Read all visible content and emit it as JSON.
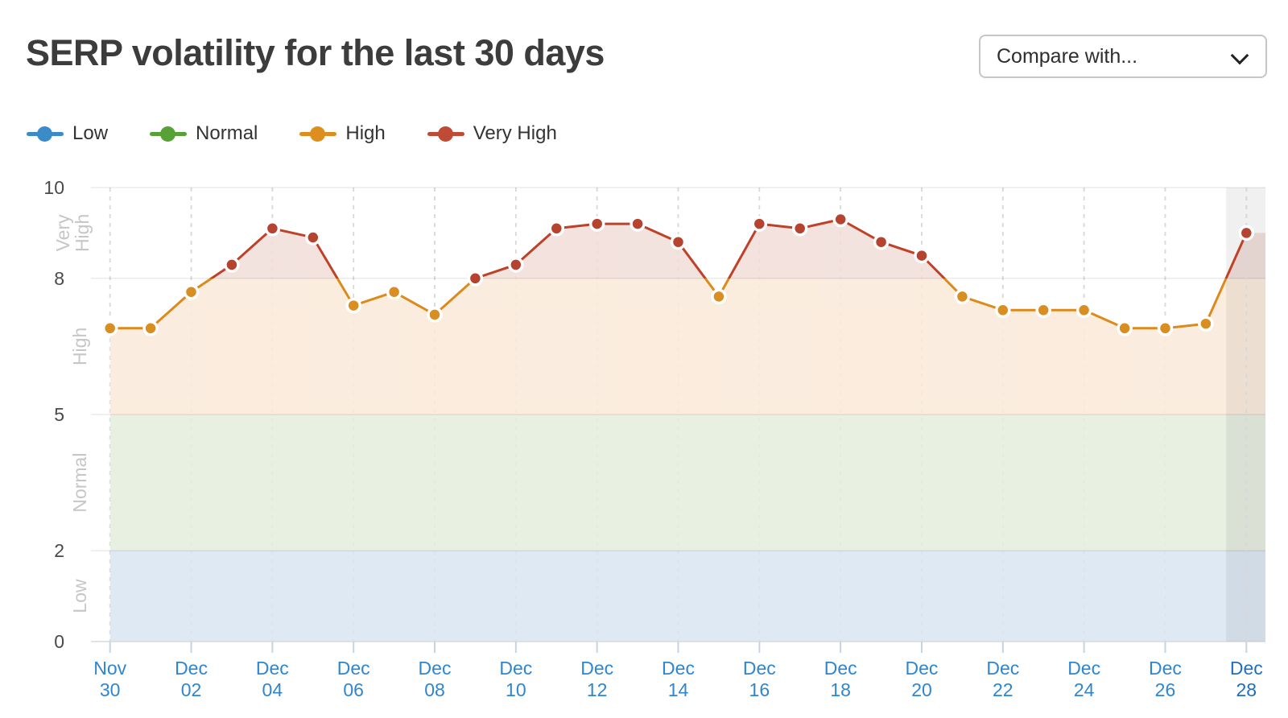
{
  "header": {
    "title": "SERP volatility for the last 30 days",
    "compare_dropdown": {
      "label": "Compare with...",
      "icon": "chevron-down"
    }
  },
  "legend": {
    "items": [
      {
        "label": "Low",
        "color": "#3A8BC8"
      },
      {
        "label": "Normal",
        "color": "#57A136"
      },
      {
        "label": "High",
        "color": "#DE8E1E"
      },
      {
        "label": "Very High",
        "color": "#BF4A36"
      }
    ]
  },
  "chart_data": {
    "type": "line",
    "title": "SERP volatility for the last 30 days",
    "x": [
      "Nov 30",
      "Dec 01",
      "Dec 02",
      "Dec 03",
      "Dec 04",
      "Dec 05",
      "Dec 06",
      "Dec 07",
      "Dec 08",
      "Dec 09",
      "Dec 10",
      "Dec 11",
      "Dec 12",
      "Dec 13",
      "Dec 14",
      "Dec 15",
      "Dec 16",
      "Dec 17",
      "Dec 18",
      "Dec 19",
      "Dec 20",
      "Dec 21",
      "Dec 22",
      "Dec 23",
      "Dec 24",
      "Dec 25",
      "Dec 26",
      "Dec 27",
      "Dec 28"
    ],
    "values": [
      6.9,
      6.9,
      7.7,
      8.3,
      9.1,
      8.9,
      7.4,
      7.7,
      7.2,
      8.0,
      8.3,
      9.1,
      9.2,
      9.2,
      8.8,
      7.6,
      9.2,
      9.1,
      9.3,
      8.8,
      8.5,
      7.6,
      7.3,
      7.3,
      7.3,
      6.9,
      6.9,
      7.0,
      9.0
    ],
    "ylim": [
      0,
      10
    ],
    "yticks": [
      0,
      2,
      5,
      8,
      10
    ],
    "x_tick_every": 2,
    "grid": {
      "horizontal": true,
      "vertical_dashed": true,
      "legend_position": "top-left"
    },
    "zones": [
      {
        "label": "Low",
        "from": 0,
        "to": 2,
        "color": "#3A8BC8",
        "band_fill": "#DAE6F3"
      },
      {
        "label": "Normal",
        "from": 2,
        "to": 5,
        "color": "#57A136",
        "band_fill": "#E5EEDE"
      },
      {
        "label": "High",
        "from": 5,
        "to": 8,
        "color": "#DE8E1E",
        "band_fill": "#FAEADA"
      },
      {
        "label": "Very High",
        "from": 8,
        "to": 10,
        "color": "#BC4330",
        "band_fill": "#F1DEDA"
      }
    ],
    "line_colors": {
      "below_threshold": "#DC8A1C",
      "above_threshold": "#BE4128"
    },
    "marker_colors": {
      "high": "#D98E21",
      "very_high": "#B5432F"
    },
    "marker_threshold": 8,
    "axis_label_color": "#2F86D0",
    "axis_label_color_current": "#1F6FBE",
    "ytick_label_color": "#4A4A4A",
    "zone_label_color": "#C6C6C6",
    "current_day_highlight": {
      "date": "Dec 28",
      "fill": "rgba(0,0,0,0.06)"
    }
  }
}
